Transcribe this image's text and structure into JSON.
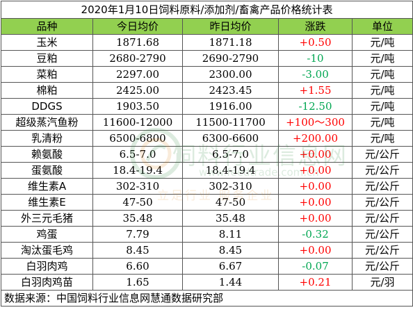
{
  "title": "2020年1月10日饲料原料/添加剂/畜禽产品价格统计表",
  "headers": [
    "品种",
    "今日均价",
    "昨日均价",
    "涨跌",
    "单位"
  ],
  "rows": [
    {
      "name": "玉米",
      "today": "1871.68",
      "yesterday": "1871.18",
      "change": "+0.50",
      "unit": "元/吨",
      "dir": "up"
    },
    {
      "name": "豆粕",
      "today": "2680-2790",
      "yesterday": "2690-2790",
      "change": "-10",
      "unit": "元/吨",
      "dir": "down"
    },
    {
      "name": "菜粕",
      "today": "2297.00",
      "yesterday": "2300.00",
      "change": "-3.00",
      "unit": "元/吨",
      "dir": "down"
    },
    {
      "name": "棉粕",
      "today": "2425.00",
      "yesterday": "2423.45",
      "change": "+1.55",
      "unit": "元/吨",
      "dir": "up"
    },
    {
      "name": "DDGS",
      "today": "1903.50",
      "yesterday": "1916.00",
      "change": "-12.50",
      "unit": "元/吨",
      "dir": "down"
    },
    {
      "name": "超级蒸汽鱼粉",
      "today": "11600-12000",
      "yesterday": "11500-11700",
      "change": "+100～300",
      "unit": "元/吨",
      "dir": "up"
    },
    {
      "name": "乳清粉",
      "today": "6500-6800",
      "yesterday": "6300-6600",
      "change": "+200.00",
      "unit": "元/吨",
      "dir": "up"
    },
    {
      "name": "赖氨酸",
      "today": "6.5-7.0",
      "yesterday": "6.5-7.0",
      "change": "+0.00",
      "unit": "元/公斤",
      "dir": "zero"
    },
    {
      "name": "蛋氨酸",
      "today": "18.4-19.4",
      "yesterday": "18.4-19.4",
      "change": "+0.00",
      "unit": "元/公斤",
      "dir": "zero"
    },
    {
      "name": "维生素A",
      "today": "302-310",
      "yesterday": "302-310",
      "change": "+0.00",
      "unit": "元/公斤",
      "dir": "zero"
    },
    {
      "name": "维生素E",
      "today": "47-50",
      "yesterday": "47-50",
      "change": "+0.00",
      "unit": "元/公斤",
      "dir": "zero"
    },
    {
      "name": "外三元毛猪",
      "today": "35.48",
      "yesterday": "35.48",
      "change": "+0.00",
      "unit": "元/公斤",
      "dir": "zero"
    },
    {
      "name": "鸡蛋",
      "today": "7.79",
      "yesterday": "8.11",
      "change": "-0.32",
      "unit": "元/公斤",
      "dir": "down"
    },
    {
      "name": "淘汰蛋毛鸡",
      "today": "8.45",
      "yesterday": "8.45",
      "change": "+0.00",
      "unit": "元/公斤",
      "dir": "zero"
    },
    {
      "name": "白羽肉鸡",
      "today": "6.60",
      "yesterday": "6.67",
      "change": "-0.07",
      "unit": "元/公斤",
      "dir": "down"
    },
    {
      "name": "白羽肉鸡苗",
      "today": "1.65",
      "yesterday": "1.44",
      "change": "+0.21",
      "unit": "元/羽",
      "dir": "up"
    }
  ],
  "source": "数据来源：中国饲料行业信息网慧通数据研究部",
  "watermark": {
    "text": "饲料行业信息网",
    "url": "www.feedtrade.com.cn",
    "slogan": "立足行业 服务企业"
  },
  "colors": {
    "header_bg": "#92d050",
    "up": "#ff0000",
    "down": "#00a651"
  }
}
